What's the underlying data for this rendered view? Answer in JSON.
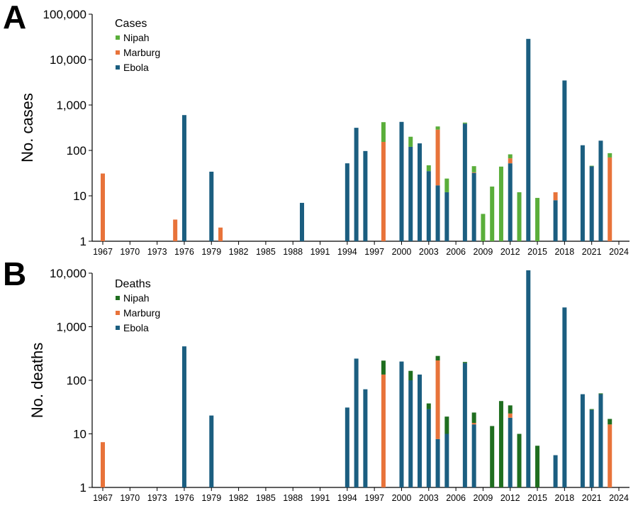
{
  "chart_data": [
    {
      "panel": "A",
      "type": "bar",
      "stacked": true,
      "scale": "log",
      "ylabel": "No. cases",
      "ylim": [
        1,
        100000
      ],
      "yticks": [
        1,
        10,
        100,
        1000,
        10000,
        100000
      ],
      "ytick_labels": [
        "1",
        "10",
        "100",
        "1,000",
        "10,000",
        "100,000"
      ],
      "xlim": [
        1967,
        2024
      ],
      "xticks": [
        1967,
        1970,
        1973,
        1976,
        1979,
        1982,
        1985,
        1988,
        1991,
        1994,
        1997,
        2000,
        2003,
        2006,
        2009,
        2012,
        2015,
        2018,
        2021,
        2024
      ],
      "xtick_labels": [
        "1967",
        "1970",
        "1973",
        "1976",
        "1979",
        "1982",
        "1985",
        "1988",
        "1991",
        "1994",
        "1997",
        "2000",
        "2003",
        "2006",
        "2009",
        "2012",
        "2015",
        "2018",
        "2021",
        "2024"
      ],
      "legend": {
        "title": "Cases",
        "position": "top-left",
        "entries": [
          "Nipah",
          "Marburg",
          "Ebola"
        ]
      },
      "series": [
        {
          "name": "Ebola",
          "color": "#1b5e80",
          "points": [
            [
              1976,
              600
            ],
            [
              1979,
              34
            ],
            [
              1989,
              7
            ],
            [
              1994,
              52
            ],
            [
              1995,
              315
            ],
            [
              1996,
              97
            ],
            [
              2000,
              425
            ],
            [
              2001,
              120
            ],
            [
              2002,
              143
            ],
            [
              2003,
              35
            ],
            [
              2004,
              17
            ],
            [
              2005,
              12
            ],
            [
              2007,
              390
            ],
            [
              2008,
              32
            ],
            [
              2012,
              52
            ],
            [
              2014,
              28600
            ],
            [
              2017,
              8
            ],
            [
              2018,
              3470
            ],
            [
              2020,
              130
            ],
            [
              2021,
              45
            ],
            [
              2022,
              164
            ]
          ]
        },
        {
          "name": "Marburg",
          "color": "#e8733a",
          "points": [
            [
              1967,
              31
            ],
            [
              1975,
              3
            ],
            [
              1980,
              2
            ],
            [
              1998,
              154
            ],
            [
              2004,
              270
            ],
            [
              2008,
              1
            ],
            [
              2012,
              15
            ],
            [
              2017,
              4
            ],
            [
              2023,
              70
            ]
          ]
        },
        {
          "name": "Nipah",
          "color": "#5aae3a",
          "points": [
            [
              1998,
              265
            ],
            [
              2001,
              80
            ],
            [
              2003,
              12
            ],
            [
              2004,
              50
            ],
            [
              2005,
              12
            ],
            [
              2007,
              20
            ],
            [
              2008,
              12
            ],
            [
              2009,
              4
            ],
            [
              2010,
              16
            ],
            [
              2011,
              44
            ],
            [
              2012,
              15
            ],
            [
              2013,
              12
            ],
            [
              2015,
              9
            ],
            [
              2021,
              1
            ],
            [
              2023,
              17
            ]
          ]
        }
      ]
    },
    {
      "panel": "B",
      "type": "bar",
      "stacked": true,
      "scale": "log",
      "ylabel": "No. deaths",
      "ylim": [
        1,
        10000
      ],
      "yticks": [
        1,
        10,
        100,
        1000,
        10000
      ],
      "ytick_labels": [
        "1",
        "10",
        "100",
        "1,000",
        "10,000"
      ],
      "xlim": [
        1967,
        2024
      ],
      "xticks": [
        1967,
        1970,
        1973,
        1976,
        1979,
        1982,
        1985,
        1988,
        1991,
        1994,
        1997,
        2000,
        2003,
        2006,
        2009,
        2012,
        2015,
        2018,
        2021,
        2024
      ],
      "xtick_labels": [
        "1967",
        "1970",
        "1973",
        "1976",
        "1979",
        "1982",
        "1985",
        "1988",
        "1991",
        "1994",
        "1997",
        "2000",
        "2003",
        "2006",
        "2009",
        "2012",
        "2015",
        "2018",
        "2021",
        "2024"
      ],
      "legend": {
        "title": "Deaths",
        "position": "top-left",
        "entries": [
          "Nipah",
          "Marburg",
          "Ebola"
        ]
      },
      "series": [
        {
          "name": "Ebola",
          "color": "#1b5e80",
          "points": [
            [
              1976,
              430
            ],
            [
              1979,
              22
            ],
            [
              1994,
              31
            ],
            [
              1995,
              254
            ],
            [
              1996,
              68
            ],
            [
              2000,
              224
            ],
            [
              2001,
              100
            ],
            [
              2002,
              128
            ],
            [
              2003,
              29
            ],
            [
              2004,
              8
            ],
            [
              2005,
              10
            ],
            [
              2007,
              210
            ],
            [
              2008,
              15
            ],
            [
              2012,
              20
            ],
            [
              2014,
              11300
            ],
            [
              2017,
              4
            ],
            [
              2018,
              2290
            ],
            [
              2020,
              55
            ],
            [
              2021,
              28
            ],
            [
              2022,
              55
            ]
          ]
        },
        {
          "name": "Marburg",
          "color": "#e8733a",
          "points": [
            [
              1967,
              7
            ],
            [
              1998,
              128
            ],
            [
              2004,
              227
            ],
            [
              2008,
              1
            ],
            [
              2012,
              4
            ],
            [
              2023,
              15
            ]
          ]
        },
        {
          "name": "Nipah",
          "color": "#1f6e1f",
          "points": [
            [
              1998,
              105
            ],
            [
              2001,
              50
            ],
            [
              2003,
              8
            ],
            [
              2004,
              50
            ],
            [
              2005,
              11
            ],
            [
              2007,
              10
            ],
            [
              2008,
              9
            ],
            [
              2010,
              14
            ],
            [
              2011,
              41
            ],
            [
              2012,
              10
            ],
            [
              2013,
              10
            ],
            [
              2015,
              6
            ],
            [
              2021,
              1
            ],
            [
              2022,
              2
            ],
            [
              2023,
              4
            ]
          ]
        }
      ]
    }
  ]
}
